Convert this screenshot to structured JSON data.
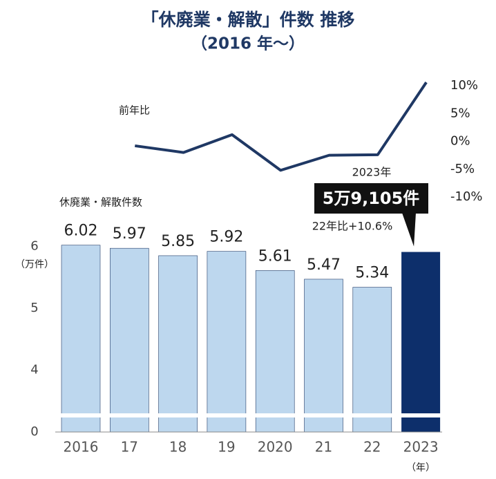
{
  "chart_data": {
    "type": "bar_line",
    "title": "「休廃業・解散」件数 推移",
    "subtitle": "（2016 年～）",
    "y_unit": "（万件）",
    "x_unit": "（年）",
    "categories": [
      "2016",
      "17",
      "18",
      "19",
      "2020",
      "21",
      "22",
      "2023"
    ],
    "series": [
      {
        "name": "休廃業・解散件数",
        "type": "bar",
        "colors": [
          "#bdd7ee",
          "#bdd7ee",
          "#bdd7ee",
          "#bdd7ee",
          "#bdd7ee",
          "#bdd7ee",
          "#bdd7ee",
          "#0d2f6b"
        ],
        "values": [
          6.02,
          5.97,
          5.85,
          5.92,
          5.61,
          5.47,
          5.34,
          5.9105
        ],
        "value_labels": [
          null,
          null,
          null,
          null,
          null,
          null,
          null,
          "5万9,105件"
        ]
      },
      {
        "name": "前年比",
        "type": "line",
        "axis": "y2",
        "color": "#1f3864",
        "values": [
          null,
          -0.8,
          -2.0,
          1.2,
          -5.2,
          -2.5,
          -2.4,
          10.6
        ]
      }
    ],
    "ylim": [
      0,
      7
    ],
    "axis_break": [
      0,
      3
    ],
    "yticks": [
      0,
      4,
      5,
      6
    ],
    "y2lim": [
      -10,
      10
    ],
    "y2ticks": [
      {
        "value": 10,
        "label": "10%"
      },
      {
        "value": 5,
        "label": "5%"
      },
      {
        "value": 0,
        "label": "0%"
      },
      {
        "value": -5,
        "label": "-5%"
      },
      {
        "value": -10,
        "label": "-10%"
      }
    ],
    "annotations": [
      "2023年",
      "22年比+10.6%"
    ]
  }
}
